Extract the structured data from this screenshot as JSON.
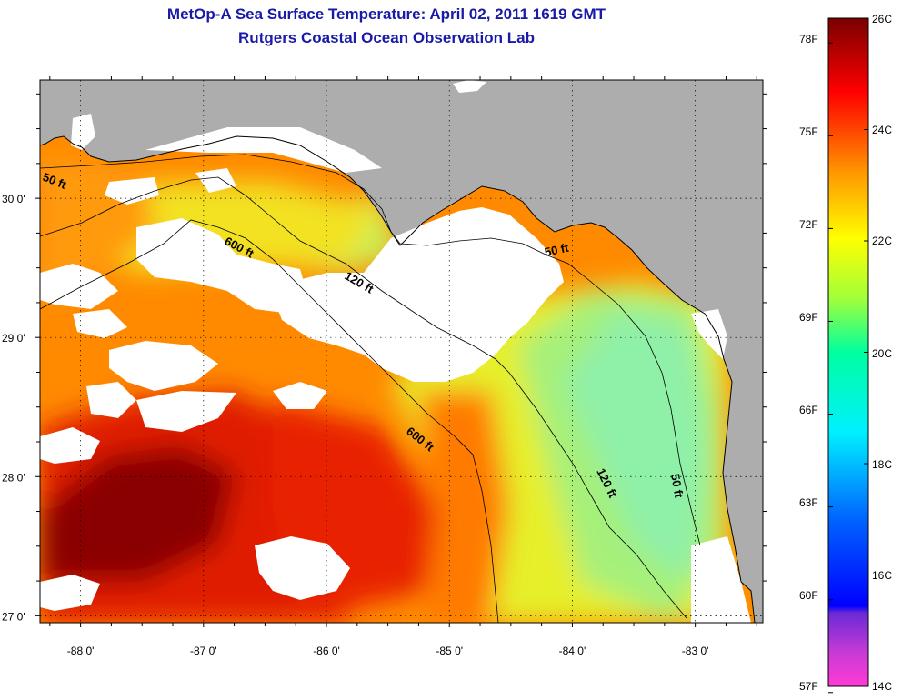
{
  "title": {
    "line1": "MetOp-A Sea Surface Temperature:  April 02, 2011 1619 GMT",
    "line2": "Rutgers Coastal Ocean Observation Lab"
  },
  "map": {
    "lon_range": [
      -88.33,
      -82.45
    ],
    "lat_range": [
      26.95,
      30.85
    ],
    "lon_ticks": [
      "-88 0'",
      "-87 0'",
      "-86 0'",
      "-85 0'",
      "-84 0'",
      "-83 0'"
    ],
    "lat_ticks": [
      "30 0'",
      "29 0'",
      "28 0'",
      "27 0'"
    ],
    "contour_labels": [
      "50 ft",
      "600 ft",
      "120 ft",
      "50 ft",
      "600 ft",
      "120 ft",
      "50 ft"
    ],
    "colors": {
      "land": "#adadad",
      "cloud": "#ffffff",
      "coast": "#000000"
    }
  },
  "colorbar": {
    "fahrenheit": [
      "78F",
      "75F",
      "72F",
      "69F",
      "66F",
      "63F",
      "60F",
      "57F"
    ],
    "celsius": [
      "26C",
      "24C",
      "22C",
      "20C",
      "18C",
      "16C",
      "14C"
    ],
    "range_c": [
      14,
      26
    ],
    "colors": [
      "#ff3ad6",
      "#8a3ad6",
      "#0000ff",
      "#00c8ff",
      "#00ffb4",
      "#b4ff3a",
      "#ffff00",
      "#ff9600",
      "#ff0000",
      "#7a0000"
    ]
  }
}
